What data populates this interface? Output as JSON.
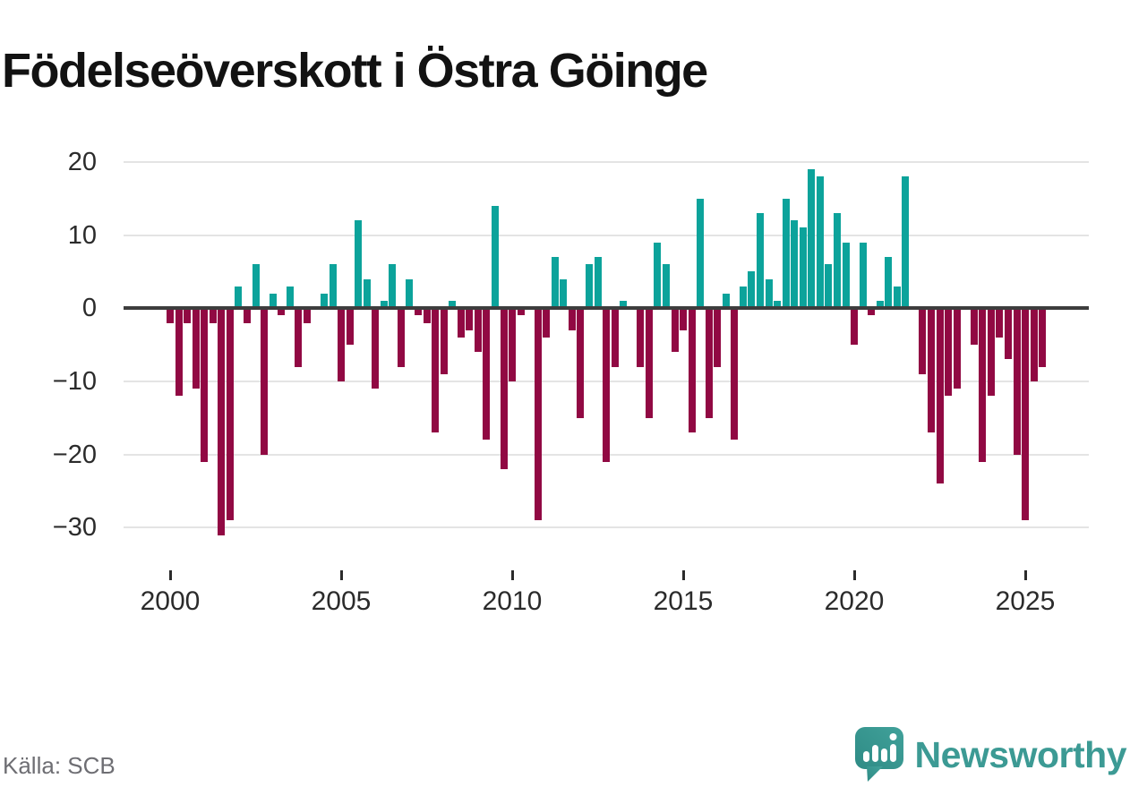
{
  "title": "Födelseöverskott i Östra Göinge",
  "source_label": "Källa: SCB",
  "brand": {
    "name": "Newsworthy",
    "color": "#3c9a94"
  },
  "colors": {
    "positive": "#0ca39b",
    "negative": "#910943",
    "grid": "#e4e4e4",
    "zero_line": "#3d3d3d",
    "axis_text": "#2b2b2b",
    "title_text": "#121212",
    "source_text": "#6e6e73",
    "logo_gradient_top": "#41a19a",
    "logo_gradient_bottom": "#2e8b85"
  },
  "chart_data": {
    "type": "bar",
    "title": "Födelseöverskott i Östra Göinge",
    "frequency": "quarterly",
    "start": {
      "year": 2000,
      "quarter": 1
    },
    "end": {
      "year": 2025,
      "quarter": 3
    },
    "xlabel": "",
    "ylabel": "",
    "ylim": [
      -33,
      22
    ],
    "grid": true,
    "legend": false,
    "x_tick_labels": [
      "2000",
      "2005",
      "2010",
      "2015",
      "2020",
      "2025"
    ],
    "y_ticks": [
      {
        "value": 20,
        "label": "20"
      },
      {
        "value": 10,
        "label": "10"
      },
      {
        "value": 0,
        "label": "0"
      },
      {
        "value": -10,
        "label": "−10"
      },
      {
        "value": -20,
        "label": "−20"
      },
      {
        "value": -30,
        "label": "−30"
      }
    ],
    "series": [
      {
        "name": "Födelseöverskott",
        "values": [
          -2,
          -12,
          -2,
          -11,
          -21,
          -2,
          -31,
          -29,
          3,
          -2,
          6,
          -20,
          2,
          -1,
          3,
          -8,
          -2,
          0,
          2,
          6,
          -10,
          -5,
          12,
          4,
          -11,
          1,
          6,
          -8,
          4,
          -1,
          -2,
          -17,
          -9,
          1,
          -4,
          -3,
          -6,
          -18,
          14,
          -22,
          -10,
          -1,
          0,
          -29,
          -4,
          7,
          4,
          -3,
          -15,
          6,
          7,
          -21,
          -8,
          1,
          0,
          -8,
          -15,
          9,
          6,
          -6,
          -3,
          -17,
          15,
          -15,
          -8,
          2,
          -18,
          3,
          5,
          13,
          4,
          1,
          15,
          12,
          11,
          19,
          18,
          6,
          13,
          9,
          -5,
          9,
          -1,
          1,
          7,
          3,
          18,
          0,
          -9,
          -17,
          -24,
          -12,
          -11,
          0,
          -5,
          -21,
          -12,
          -4,
          -7,
          -20,
          -29,
          -10,
          -8
        ]
      }
    ]
  }
}
